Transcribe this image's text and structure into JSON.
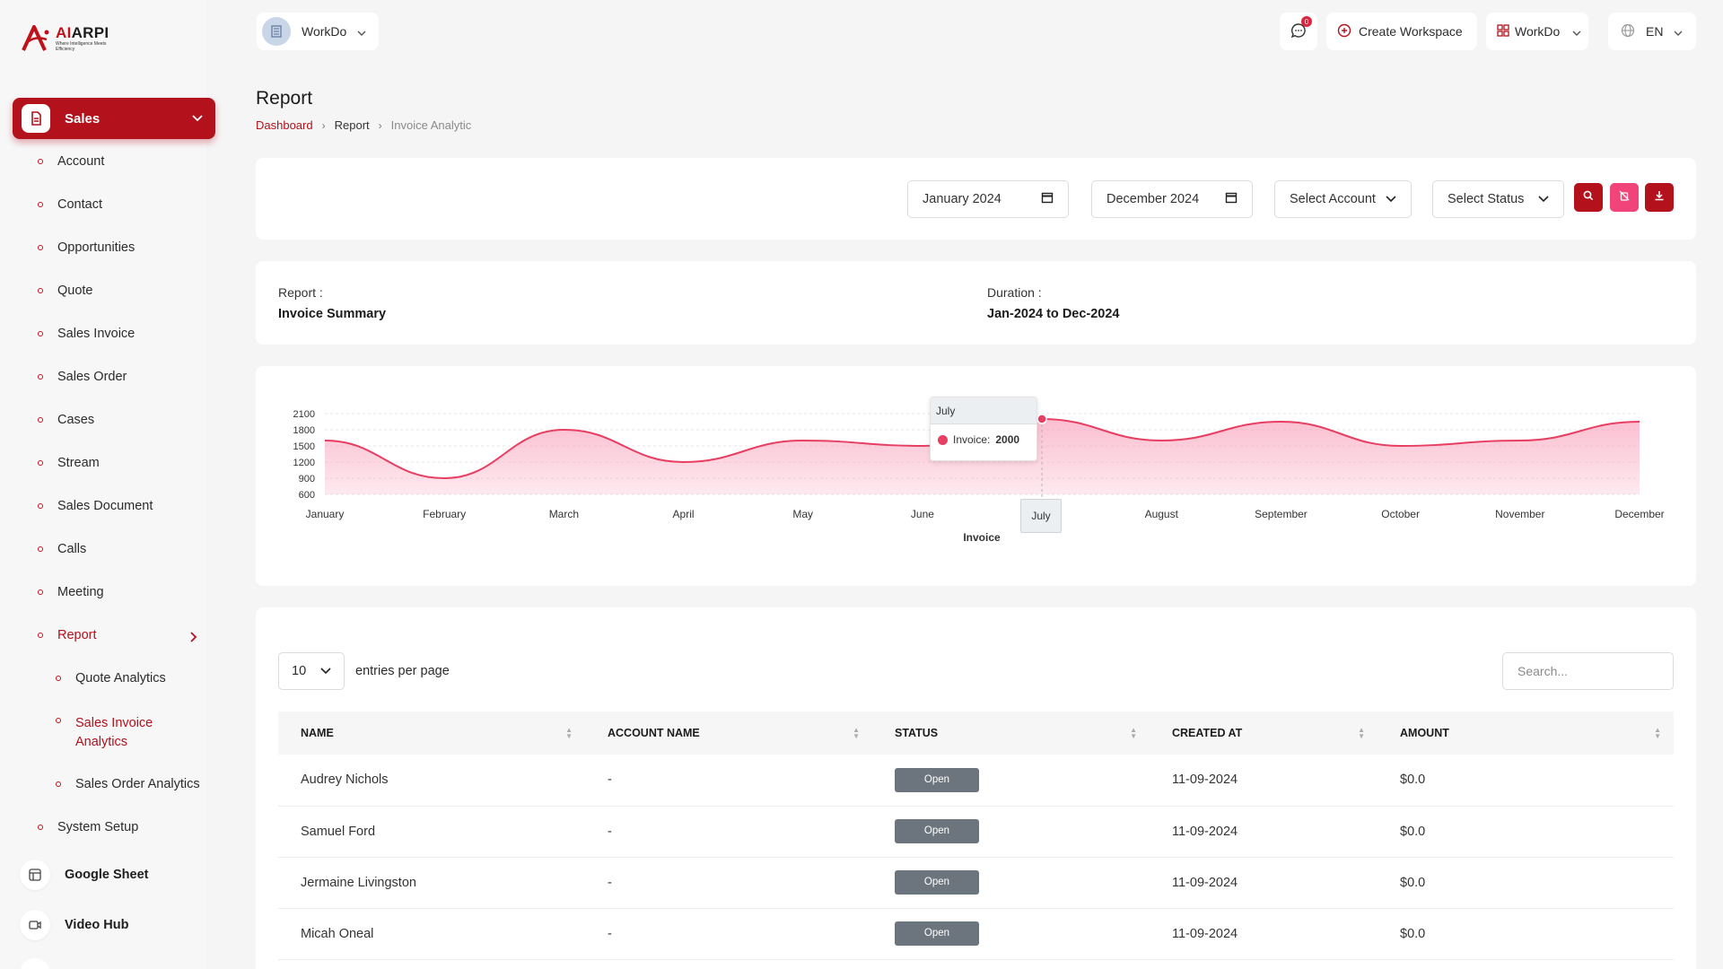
{
  "brand": {
    "name_prefix": "AI",
    "name_suffix": "ARPI",
    "tagline": "Where Intelligence Meets Efficiency"
  },
  "sidebar": {
    "sales_label": "Sales",
    "items": [
      {
        "label": "Account"
      },
      {
        "label": "Contact"
      },
      {
        "label": "Opportunities"
      },
      {
        "label": "Quote"
      },
      {
        "label": "Sales Invoice"
      },
      {
        "label": "Sales Order"
      },
      {
        "label": "Cases"
      },
      {
        "label": "Stream"
      },
      {
        "label": "Sales Document"
      },
      {
        "label": "Calls"
      },
      {
        "label": "Meeting"
      },
      {
        "label": "Report"
      },
      {
        "label": "Quote Analytics"
      },
      {
        "label": "Sales Invoice Analytics"
      },
      {
        "label": "Sales Order Analytics"
      },
      {
        "label": "System Setup"
      }
    ],
    "google_sheet": "Google Sheet",
    "video_hub": "Video Hub"
  },
  "topbar": {
    "workspace": "WorkDo",
    "notification_count": "0",
    "create_workspace": "Create Workspace",
    "workspace_menu": "WorkDo",
    "language": "EN"
  },
  "page": {
    "title": "Report",
    "breadcrumb": [
      "Dashboard",
      "Report",
      "Invoice Analytic"
    ]
  },
  "filters": {
    "start_month": "January 2024",
    "end_month": "December 2024",
    "account": "Select Account",
    "status": "Select Status"
  },
  "summary": {
    "report_label": "Report :",
    "report_value": "Invoice Summary",
    "duration_label": "Duration :",
    "duration_value": "Jan-2024 to Dec-2024"
  },
  "chart_data": {
    "type": "area",
    "categories": [
      "January",
      "February",
      "March",
      "April",
      "May",
      "June",
      "July",
      "August",
      "September",
      "October",
      "November",
      "December"
    ],
    "series": [
      {
        "name": "Invoice",
        "values": [
          1600,
          900,
          1800,
          1200,
          1600,
          1500,
          2000,
          1600,
          1950,
          1500,
          1600,
          1950
        ]
      }
    ],
    "xlabel": "Invoice",
    "yticks": [
      600,
      900,
      1200,
      1500,
      1800,
      2100
    ],
    "ylim": [
      600,
      2100
    ],
    "tooltip": {
      "category": "July",
      "series": "Invoice:",
      "value": "2000"
    },
    "colors": {
      "line": "#e83e62",
      "fill": "#f9a8c0"
    }
  },
  "table": {
    "entries_value": "10",
    "entries_label": "entries per page",
    "search_placeholder": "Search...",
    "columns": [
      "NAME",
      "ACCOUNT NAME",
      "STATUS",
      "CREATED AT",
      "AMOUNT"
    ],
    "rows": [
      {
        "name": "Audrey Nichols",
        "account": "-",
        "status": "Open",
        "created": "11-09-2024",
        "amount": "$0.0"
      },
      {
        "name": "Samuel Ford",
        "account": "-",
        "status": "Open",
        "created": "11-09-2024",
        "amount": "$0.0"
      },
      {
        "name": "Jermaine Livingston",
        "account": "-",
        "status": "Open",
        "created": "11-09-2024",
        "amount": "$0.0"
      },
      {
        "name": "Micah Oneal",
        "account": "-",
        "status": "Open",
        "created": "11-09-2024",
        "amount": "$0.0"
      }
    ]
  },
  "colors": {
    "primary": "#b3111b",
    "accent_pink": "#e83e62",
    "status_gray": "#6c757d"
  }
}
